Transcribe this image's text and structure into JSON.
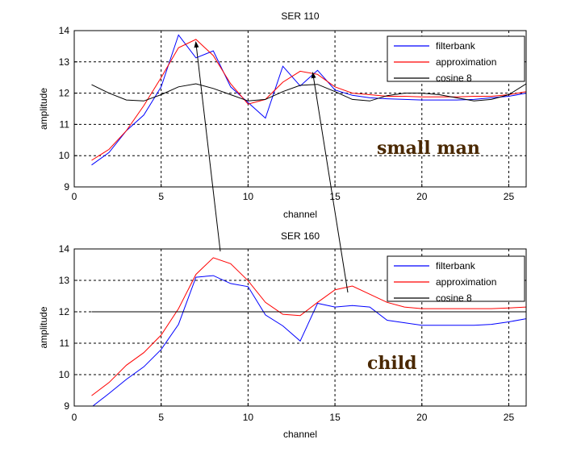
{
  "chart_data": [
    {
      "type": "line",
      "title": "SER 110",
      "xlabel": "channel",
      "ylabel": "amplitude",
      "xlim": [
        0,
        26
      ],
      "ylim": [
        9,
        14
      ],
      "xticks": [
        0,
        5,
        10,
        15,
        20,
        25
      ],
      "yticks": [
        9,
        10,
        11,
        12,
        13,
        14
      ],
      "grid": true,
      "legend_position": "top-right",
      "annotation": "small man",
      "x": [
        1,
        2,
        3,
        4,
        5,
        6,
        7,
        8,
        9,
        10,
        11,
        12,
        13,
        14,
        15,
        16,
        17,
        18,
        19,
        20,
        21,
        22,
        23,
        24,
        25,
        26
      ],
      "series": [
        {
          "name": "filterbank",
          "color": "#0000ff",
          "values": [
            9.7,
            10.1,
            10.8,
            11.3,
            12.2,
            13.86,
            13.13,
            13.35,
            12.2,
            11.7,
            11.2,
            12.86,
            12.23,
            12.73,
            12.1,
            11.93,
            11.85,
            11.82,
            11.8,
            11.78,
            11.78,
            11.78,
            11.8,
            11.85,
            11.9,
            12.0
          ]
        },
        {
          "name": "approximation",
          "color": "#ff0000",
          "values": [
            9.85,
            10.2,
            10.8,
            11.6,
            12.5,
            13.45,
            13.72,
            13.2,
            12.3,
            11.65,
            11.8,
            12.35,
            12.7,
            12.6,
            12.2,
            12.0,
            11.95,
            11.9,
            11.9,
            11.88,
            11.88,
            11.88,
            11.9,
            11.9,
            11.95,
            12.05
          ]
        },
        {
          "name": "cosine 8",
          "color": "#000000",
          "values": [
            12.27,
            12.0,
            11.78,
            11.75,
            11.95,
            12.2,
            12.3,
            12.15,
            11.95,
            11.75,
            11.8,
            12.05,
            12.25,
            12.28,
            12.05,
            11.8,
            11.75,
            11.92,
            12.0,
            12.0,
            11.95,
            11.85,
            11.75,
            11.8,
            11.95,
            12.3
          ]
        }
      ]
    },
    {
      "type": "line",
      "title": "SER 160",
      "xlabel": "channel",
      "ylabel": "amplitude",
      "xlim": [
        0,
        26
      ],
      "ylim": [
        9,
        14
      ],
      "xticks": [
        0,
        5,
        10,
        15,
        20,
        25
      ],
      "yticks": [
        9,
        10,
        11,
        12,
        13,
        14
      ],
      "grid": true,
      "legend_position": "top-right",
      "annotation": "child",
      "x": [
        1,
        2,
        3,
        4,
        5,
        6,
        7,
        8,
        9,
        10,
        11,
        12,
        13,
        14,
        15,
        16,
        17,
        18,
        19,
        20,
        21,
        22,
        23,
        24,
        25,
        26
      ],
      "series": [
        {
          "name": "filterbank",
          "color": "#0000ff",
          "values": [
            8.97,
            9.4,
            9.85,
            10.25,
            10.8,
            11.6,
            13.1,
            13.15,
            12.9,
            12.8,
            11.9,
            11.55,
            11.07,
            12.27,
            12.15,
            12.2,
            12.15,
            11.73,
            11.65,
            11.57,
            11.57,
            11.57,
            11.57,
            11.6,
            11.68,
            11.78
          ]
        },
        {
          "name": "approximation",
          "color": "#ff0000",
          "values": [
            9.33,
            9.75,
            10.3,
            10.7,
            11.26,
            12.1,
            13.19,
            13.72,
            13.53,
            12.99,
            12.3,
            11.92,
            11.88,
            12.3,
            12.7,
            12.82,
            12.56,
            12.3,
            12.15,
            12.1,
            12.1,
            12.1,
            12.1,
            12.1,
            12.12,
            12.15
          ]
        },
        {
          "name": "cosine 8",
          "color": "#000000",
          "values": [
            12,
            12,
            12,
            12,
            12,
            12,
            12,
            12,
            12,
            12,
            12,
            12,
            12,
            12,
            12,
            12,
            12,
            12,
            12,
            12,
            12,
            12,
            12,
            12,
            12,
            12
          ]
        }
      ]
    }
  ]
}
